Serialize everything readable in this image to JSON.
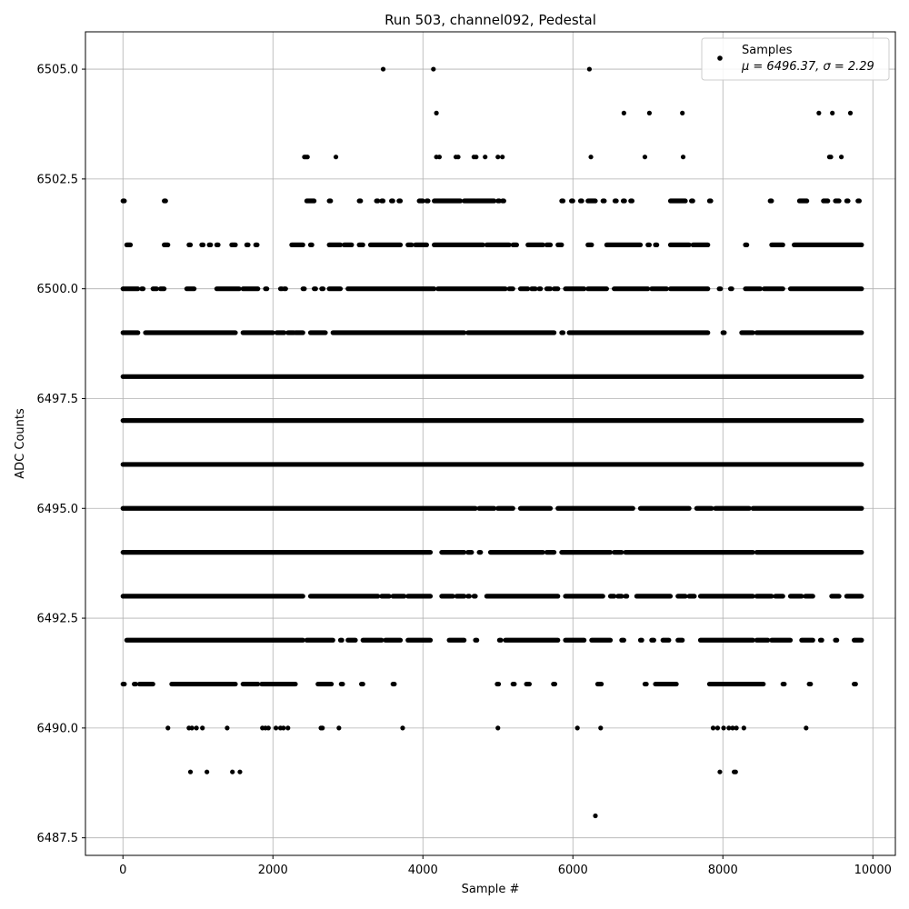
{
  "chart_data": {
    "type": "scatter",
    "title": "Run 503, channel092, Pedestal",
    "xlabel": "Sample #",
    "ylabel": "ADC Counts",
    "xlim": [
      -500,
      10300
    ],
    "ylim": [
      6487.1,
      6505.85
    ],
    "xticks": [
      0,
      2000,
      4000,
      6000,
      8000,
      10000
    ],
    "xtick_labels": [
      "0",
      "2000",
      "4000",
      "6000",
      "8000",
      "10000"
    ],
    "yticks": [
      6487.5,
      6490.0,
      6492.5,
      6495.0,
      6497.5,
      6500.0,
      6502.5,
      6505.0
    ],
    "ytick_labels": [
      "6487.5",
      "6490.0",
      "6492.5",
      "6495.0",
      "6497.5",
      "6500.0",
      "6502.5",
      "6505.0"
    ],
    "grid": true,
    "legend_position": "top-right",
    "marker_color": "#000000",
    "series": [
      {
        "name": "Samples",
        "stats_label": "μ = 6496.37, σ = 2.29",
        "sample_count": 9800,
        "levels": [
          {
            "y": 6488,
            "x": [
              6300
            ]
          },
          {
            "y": 6489,
            "x": [
              900,
              1120,
              1460,
              1560,
              7960,
              8150,
              8170
            ]
          },
          {
            "y": 6490,
            "x": [
              600,
              880,
              920,
              980,
              1060,
              1390,
              1860,
              1900,
              1940,
              2040,
              2100,
              2140,
              2200,
              2640,
              2660,
              2880,
              3730,
              5000,
              6060,
              6370,
              7870,
              7930,
              8010,
              8080,
              8130,
              8180,
              8280,
              9110
            ]
          },
          {
            "y": 6505,
            "x": [
              3470,
              4140,
              6220
            ]
          },
          {
            "y": 6504,
            "x": [
              4180,
              6680,
              7020,
              7460,
              9280,
              9460,
              9700
            ]
          },
          {
            "y": 6503,
            "x": [
              2420,
              2440,
              2460,
              2840,
              4180,
              4220,
              4440,
              4470,
              4680,
              4710,
              4830,
              5000,
              5060,
              6240,
              6960,
              7470,
              9420,
              9440,
              9580
            ]
          }
        ],
        "segments": [
          {
            "y": 6491,
            "ranges": [
              [
                0,
                20
              ],
              [
                150,
                170
              ],
              [
                220,
                400
              ],
              [
                650,
                1500
              ],
              [
                1600,
                1800
              ],
              [
                1850,
                2300
              ],
              [
                2600,
                2780
              ],
              [
                2910,
                2930
              ],
              [
                3180,
                3200
              ],
              [
                3600,
                3620
              ],
              [
                4990,
                5010
              ],
              [
                5200,
                5220
              ],
              [
                5380,
                5420
              ],
              [
                5740,
                5760
              ],
              [
                6330,
                6380
              ],
              [
                6960,
                6980
              ],
              [
                7100,
                7380
              ],
              [
                7820,
                8540
              ],
              [
                8800,
                8820
              ],
              [
                9150,
                9170
              ],
              [
                9750,
                9770
              ]
            ]
          },
          {
            "y": 6492,
            "ranges": [
              [
                50,
                2400
              ],
              [
                2450,
                2800
              ],
              [
                2900,
                2920
              ],
              [
                3000,
                3100
              ],
              [
                3200,
                3450
              ],
              [
                3500,
                3700
              ],
              [
                3800,
                4100
              ],
              [
                4350,
                4550
              ],
              [
                4700,
                4720
              ],
              [
                5020,
                5040
              ],
              [
                5100,
                5800
              ],
              [
                5900,
                6150
              ],
              [
                6250,
                6500
              ],
              [
                6650,
                6680
              ],
              [
                6900,
                6920
              ],
              [
                7050,
                7080
              ],
              [
                7200,
                7280
              ],
              [
                7400,
                7460
              ],
              [
                7700,
                8400
              ],
              [
                8450,
                8600
              ],
              [
                8650,
                8900
              ],
              [
                9050,
                9200
              ],
              [
                9300,
                9320
              ],
              [
                9500,
                9520
              ],
              [
                9750,
                9850
              ]
            ]
          },
          {
            "y": 6493,
            "ranges": [
              [
                0,
                2400
              ],
              [
                2500,
                3400
              ],
              [
                3450,
                3550
              ],
              [
                3600,
                3750
              ],
              [
                3800,
                4100
              ],
              [
                4250,
                4400
              ],
              [
                4450,
                4550
              ],
              [
                4600,
                4620
              ],
              [
                4680,
                4700
              ],
              [
                4850,
                5800
              ],
              [
                5900,
                6400
              ],
              [
                6500,
                6550
              ],
              [
                6600,
                6650
              ],
              [
                6700,
                6720
              ],
              [
                6850,
                7300
              ],
              [
                7400,
                7500
              ],
              [
                7550,
                7620
              ],
              [
                7700,
                8400
              ],
              [
                8450,
                8650
              ],
              [
                8700,
                8800
              ],
              [
                8900,
                9050
              ],
              [
                9100,
                9200
              ],
              [
                9450,
                9550
              ],
              [
                9650,
                9850
              ]
            ]
          },
          {
            "y": 6494,
            "ranges": [
              [
                0,
                4100
              ],
              [
                4250,
                4550
              ],
              [
                4600,
                4650
              ],
              [
                4750,
                4770
              ],
              [
                4900,
                5600
              ],
              [
                5650,
                5750
              ],
              [
                5850,
                6500
              ],
              [
                6550,
                6650
              ],
              [
                6700,
                8400
              ],
              [
                8450,
                9850
              ]
            ]
          },
          {
            "y": 6495,
            "ranges": [
              [
                0,
                4700
              ],
              [
                4750,
                4950
              ],
              [
                5000,
                5200
              ],
              [
                5300,
                5700
              ],
              [
                5800,
                6800
              ],
              [
                6900,
                7550
              ],
              [
                7650,
                7850
              ],
              [
                7900,
                8350
              ],
              [
                8400,
                9850
              ]
            ]
          },
          {
            "y": 6496,
            "ranges": [
              [
                0,
                9850
              ]
            ]
          },
          {
            "y": 6497,
            "ranges": [
              [
                0,
                9850
              ]
            ]
          },
          {
            "y": 6498,
            "ranges": [
              [
                0,
                9850
              ]
            ]
          },
          {
            "y": 6499,
            "ranges": [
              [
                0,
                200
              ],
              [
                300,
                1500
              ],
              [
                1600,
                2000
              ],
              [
                2050,
                2150
              ],
              [
                2200,
                2280
              ],
              [
                2300,
                2400
              ],
              [
                2500,
                2700
              ],
              [
                2800,
                4550
              ],
              [
                4600,
                5750
              ],
              [
                5850,
                5870
              ],
              [
                5950,
                7800
              ],
              [
                8000,
                8020
              ],
              [
                8250,
                8400
              ],
              [
                8450,
                9850
              ]
            ]
          },
          {
            "y": 6500,
            "ranges": [
              [
                0,
                200
              ],
              [
                250,
                270
              ],
              [
                400,
                450
              ],
              [
                500,
                550
              ],
              [
                850,
                950
              ],
              [
                1250,
                1550
              ],
              [
                1600,
                1800
              ],
              [
                1900,
                1920
              ],
              [
                2100,
                2120
              ],
              [
                2150,
                2170
              ],
              [
                2400,
                2420
              ],
              [
                2550,
                2570
              ],
              [
                2650,
                2670
              ],
              [
                2750,
                2900
              ],
              [
                3000,
                4150
              ],
              [
                4200,
                5100
              ],
              [
                5150,
                5200
              ],
              [
                5300,
                5400
              ],
              [
                5450,
                5500
              ],
              [
                5550,
                5570
              ],
              [
                5650,
                5700
              ],
              [
                5750,
                5800
              ],
              [
                5900,
                6150
              ],
              [
                6200,
                6450
              ],
              [
                6550,
                7000
              ],
              [
                7050,
                7250
              ],
              [
                7300,
                7800
              ],
              [
                7950,
                7970
              ],
              [
                8100,
                8120
              ],
              [
                8300,
                8500
              ],
              [
                8550,
                8800
              ],
              [
                8900,
                9850
              ]
            ]
          },
          {
            "y": 6501,
            "ranges": [
              [
                50,
                100
              ],
              [
                550,
                600
              ],
              [
                880,
                900
              ],
              [
                1050,
                1070
              ],
              [
                1150,
                1170
              ],
              [
                1250,
                1270
              ],
              [
                1450,
                1500
              ],
              [
                1650,
                1670
              ],
              [
                1770,
                1790
              ],
              [
                2250,
                2400
              ],
              [
                2500,
                2520
              ],
              [
                2750,
                2900
              ],
              [
                2950,
                3050
              ],
              [
                3150,
                3200
              ],
              [
                3300,
                3700
              ],
              [
                3800,
                3850
              ],
              [
                3900,
                4050
              ],
              [
                4150,
                4800
              ],
              [
                4850,
                5150
              ],
              [
                5200,
                5250
              ],
              [
                5400,
                5600
              ],
              [
                5650,
                5700
              ],
              [
                5800,
                5850
              ],
              [
                6200,
                6250
              ],
              [
                6450,
                6900
              ],
              [
                7000,
                7020
              ],
              [
                7100,
                7120
              ],
              [
                7300,
                7550
              ],
              [
                7600,
                7800
              ],
              [
                8300,
                8320
              ],
              [
                8650,
                8800
              ],
              [
                8950,
                9850
              ]
            ]
          },
          {
            "y": 6502,
            "ranges": [
              [
                0,
                20
              ],
              [
                550,
                570
              ],
              [
                2450,
                2550
              ],
              [
                2750,
                2770
              ],
              [
                3150,
                3170
              ],
              [
                3380,
                3400
              ],
              [
                3450,
                3470
              ],
              [
                3580,
                3600
              ],
              [
                3680,
                3700
              ],
              [
                3950,
                4000
              ],
              [
                4050,
                4070
              ],
              [
                4150,
                4500
              ],
              [
                4550,
                4950
              ],
              [
                5000,
                5020
              ],
              [
                5060,
                5080
              ],
              [
                5850,
                5870
              ],
              [
                5980,
                6000
              ],
              [
                6100,
                6120
              ],
              [
                6200,
                6300
              ],
              [
                6400,
                6420
              ],
              [
                6560,
                6580
              ],
              [
                6670,
                6690
              ],
              [
                6770,
                6790
              ],
              [
                7300,
                7500
              ],
              [
                7580,
                7600
              ],
              [
                7820,
                7840
              ],
              [
                8630,
                8650
              ],
              [
                9020,
                9120
              ],
              [
                9340,
                9400
              ],
              [
                9500,
                9550
              ],
              [
                9650,
                9670
              ],
              [
                9800,
                9820
              ]
            ]
          }
        ]
      }
    ]
  }
}
